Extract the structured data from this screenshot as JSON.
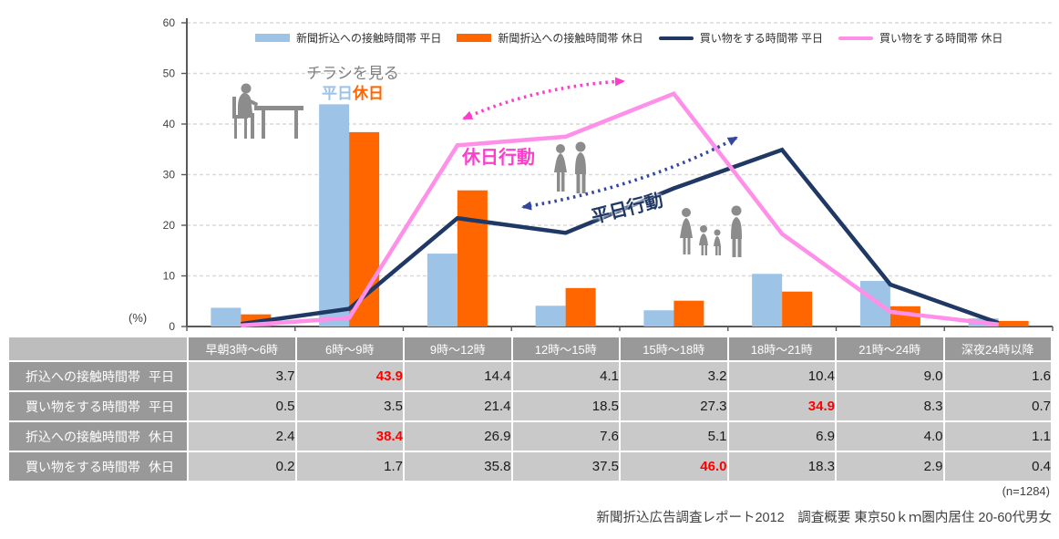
{
  "chart_data": {
    "type": "bar+line",
    "title": "",
    "unit_label": "(%)",
    "categories": [
      "早朝3時～6時",
      "6時～9時",
      "9時～12時",
      "12時～15時",
      "15時～18時",
      "18時～21時",
      "21時～24時",
      "深夜24時以降"
    ],
    "series": [
      {
        "name": "新聞折込への接触時間帯 平日",
        "type": "bar",
        "color": "#9dc3e6",
        "values": [
          3.7,
          43.9,
          14.4,
          4.1,
          3.2,
          10.4,
          9.0,
          1.6
        ]
      },
      {
        "name": "新聞折込への接触時間帯 休日",
        "type": "bar",
        "color": "#ff6600",
        "values": [
          2.4,
          38.4,
          26.9,
          7.6,
          5.1,
          6.9,
          4.0,
          1.1
        ]
      },
      {
        "name": "買い物をする時間帯 平日",
        "type": "line",
        "color": "#1f3864",
        "values": [
          0.5,
          3.5,
          21.4,
          18.5,
          27.3,
          34.9,
          8.3,
          0.7
        ]
      },
      {
        "name": "買い物をする時間帯 休日",
        "type": "line",
        "color": "#ff8fe8",
        "values": [
          0.2,
          1.7,
          35.8,
          37.5,
          46.0,
          18.3,
          2.9,
          0.4
        ]
      }
    ],
    "ylim": [
      0,
      60
    ],
    "y_ticks": [
      0,
      10,
      20,
      30,
      40,
      50,
      60
    ],
    "grid": "dashed-horizontal",
    "legend_position": "top"
  },
  "annotations": {
    "flyer_title": "チラシを見る",
    "flyer_weekday": "平日",
    "flyer_holiday": "休日",
    "holiday_action": "休日行動",
    "weekday_action": "平日行動"
  },
  "icons": {
    "flyer": "reading-person-icon",
    "holiday": "couple-walking-icon",
    "weekday": "family-icon"
  },
  "table": {
    "col_headers": [
      "早朝3時～6時",
      "6時～9時",
      "9時～12時",
      "12時～15時",
      "15時～18時",
      "18時～21時",
      "21時～24時",
      "深夜24時以降"
    ],
    "rows": [
      {
        "label": "折込への接触時間帯",
        "day": "平日",
        "values": [
          "3.7",
          "43.9",
          "14.4",
          "4.1",
          "3.2",
          "10.4",
          "9.0",
          "1.6"
        ],
        "highlight_index": 1
      },
      {
        "label": "買い物をする時間帯",
        "day": "平日",
        "values": [
          "0.5",
          "3.5",
          "21.4",
          "18.5",
          "27.3",
          "34.9",
          "8.3",
          "0.7"
        ],
        "highlight_index": 5
      },
      {
        "label": "折込への接触時間帯",
        "day": "休日",
        "values": [
          "2.4",
          "38.4",
          "26.9",
          "7.6",
          "5.1",
          "6.9",
          "4.0",
          "1.1"
        ],
        "highlight_index": 1
      },
      {
        "label": "買い物をする時間帯",
        "day": "休日",
        "values": [
          "0.2",
          "1.7",
          "35.8",
          "37.5",
          "46.0",
          "18.3",
          "2.9",
          "0.4"
        ],
        "highlight_index": 4
      }
    ]
  },
  "footer": {
    "sample": "(n=1284)",
    "source": "新聞折込広告調査レポート2012　調査概要 東京50ｋｍ圏内居住 20-60代男女"
  },
  "colors": {
    "bar_contact_weekday": "#9dc3e6",
    "bar_contact_holiday": "#ff6600",
    "line_shopping_weekday": "#1f3864",
    "line_shopping_holiday": "#ff8fe8",
    "arrow_holiday": "#ff3dcc",
    "arrow_weekday": "#3346a0",
    "highlight_red": "#ff0000",
    "table_header_gray": "#999999",
    "table_cell_gray": "#c9c9c9",
    "silhouette_gray": "#8c8c8c"
  }
}
